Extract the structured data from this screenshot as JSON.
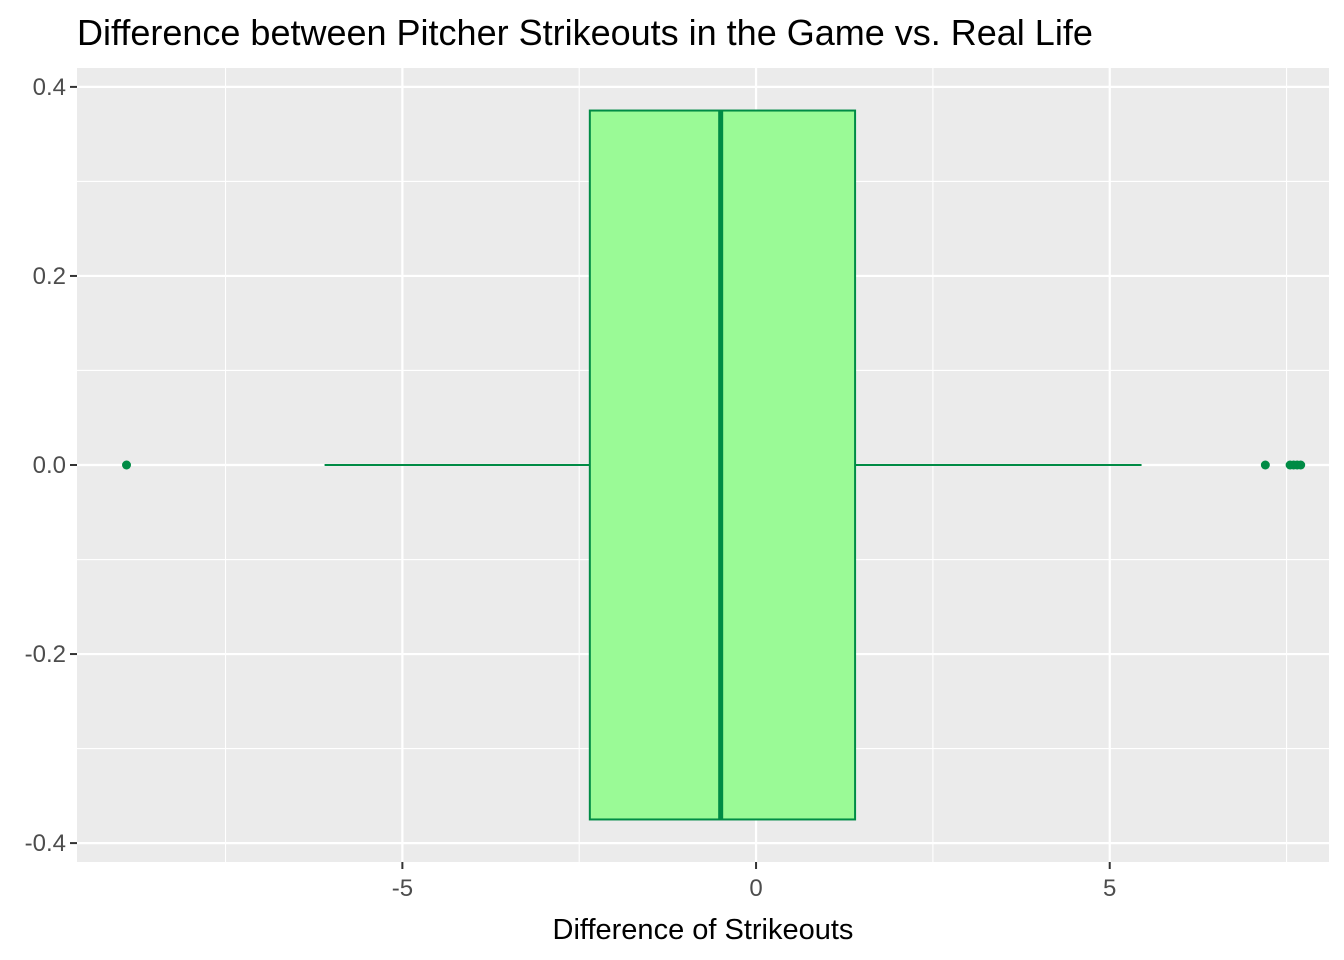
{
  "chart_data": {
    "type": "boxplot",
    "title": "Difference between Pitcher Strikeouts in the Game vs. Real Life",
    "xlabel": "Difference of Strikeouts",
    "ylabel": "",
    "xlim": [
      -9.6,
      8.1
    ],
    "ylim": [
      -0.42,
      0.42
    ],
    "x_ticks": [
      -5,
      0,
      5
    ],
    "x_tick_labels": [
      "-5",
      "0",
      "5"
    ],
    "y_ticks": [
      -0.4,
      -0.2,
      0.0,
      0.2,
      0.4
    ],
    "y_tick_labels": [
      "-0.4",
      "-0.2",
      "0.0",
      "0.2",
      "0.4"
    ],
    "grid": true,
    "box": {
      "min": -6.1,
      "q1": -2.35,
      "median": -0.5,
      "q3": 1.4,
      "max": 5.45,
      "y_center": 0.0,
      "half_width": 0.375,
      "outliers": [
        -8.9,
        7.2,
        7.55,
        7.6,
        7.65,
        7.7
      ]
    },
    "colors": {
      "panel_background": "#ebebeb",
      "grid_line": "#ffffff",
      "box_fill": "#9afa96",
      "box_line": "#008b45",
      "axis_tick": "#333333"
    }
  }
}
